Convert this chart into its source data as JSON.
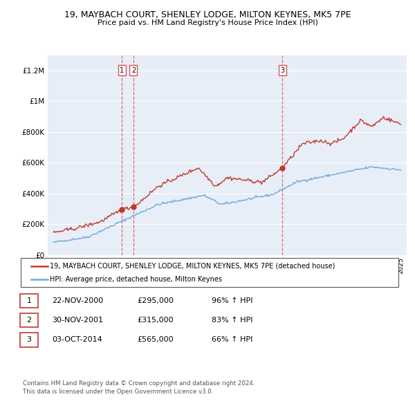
{
  "title": "19, MAYBACH COURT, SHENLEY LODGE, MILTON KEYNES, MK5 7PE",
  "subtitle": "Price paid vs. HM Land Registry's House Price Index (HPI)",
  "ylim": [
    0,
    1300000
  ],
  "yticks": [
    0,
    200000,
    400000,
    600000,
    800000,
    1000000,
    1200000
  ],
  "ytick_labels": [
    "£0",
    "£200K",
    "£400K",
    "£600K",
    "£800K",
    "£1M",
    "£1.2M"
  ],
  "hpi_color": "#6aabdc",
  "price_color": "#c0392b",
  "vline_color": "#e05050",
  "background_color": "#e8eef8",
  "trans_years": [
    2000.9,
    2001.9,
    2014.75
  ],
  "trans_prices": [
    295000,
    315000,
    565000
  ],
  "trans_labels": [
    "1",
    "2",
    "3"
  ],
  "legend_label_price": "19, MAYBACH COURT, SHENLEY LODGE, MILTON KEYNES, MK5 7PE (detached house)",
  "legend_label_hpi": "HPI: Average price, detached house, Milton Keynes",
  "footnote1": "Contains HM Land Registry data © Crown copyright and database right 2024.",
  "footnote2": "This data is licensed under the Open Government Licence v3.0.",
  "table_rows": [
    [
      "1",
      "22-NOV-2000",
      "£295,000",
      "96% ↑ HPI"
    ],
    [
      "2",
      "30-NOV-2001",
      "£315,000",
      "83% ↑ HPI"
    ],
    [
      "3",
      "03-OCT-2014",
      "£565,000",
      "66% ↑ HPI"
    ]
  ]
}
